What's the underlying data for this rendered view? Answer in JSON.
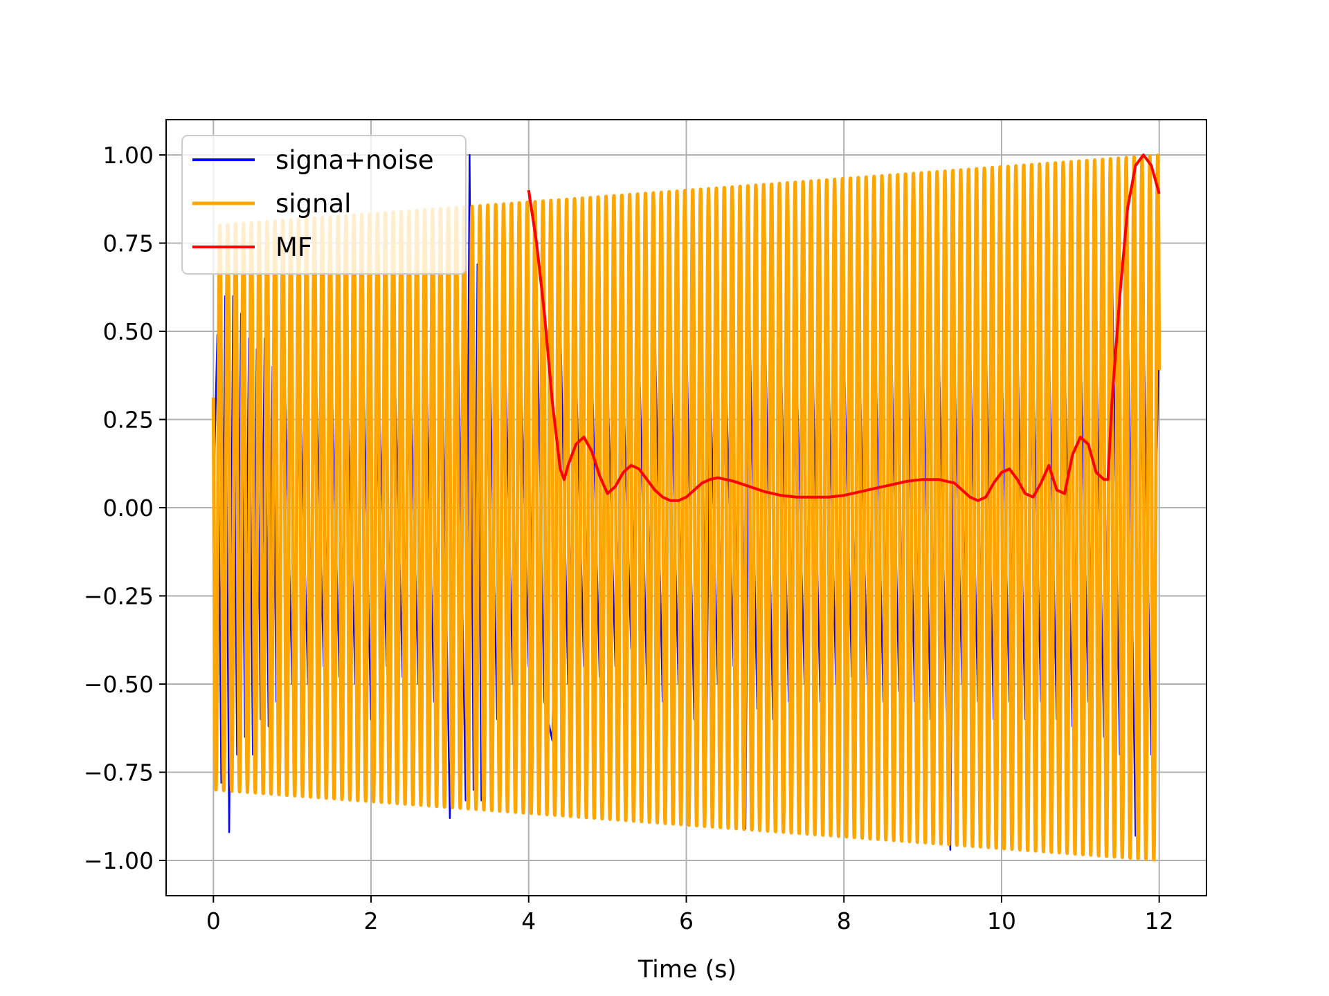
{
  "chart_data": {
    "type": "line",
    "title": "",
    "xlabel": "Time (s)",
    "ylabel": "",
    "xlim": [
      -0.6,
      12.6
    ],
    "ylim": [
      -1.1,
      1.1
    ],
    "grid": true,
    "legend_position": "top-left",
    "x_ticks": [
      0,
      2,
      4,
      6,
      8,
      10,
      12
    ],
    "x_tick_labels": [
      "0",
      "2",
      "4",
      "6",
      "8",
      "10",
      "12"
    ],
    "y_ticks": [
      1.0,
      0.75,
      0.5,
      0.25,
      0.0,
      -0.25,
      -0.5,
      -0.75,
      -1.0
    ],
    "y_tick_labels": [
      "1.00",
      "0.75",
      "0.50",
      "0.25",
      "0.00",
      "−0.25",
      "−0.50",
      "−0.75",
      "−1.00"
    ],
    "series": [
      {
        "name": "signa+noise",
        "color": "#0000ff",
        "x": [
          0.0,
          0.05,
          0.1,
          0.15,
          0.2,
          0.25,
          0.3,
          0.35,
          0.4,
          0.45,
          0.5,
          0.55,
          0.6,
          0.65,
          0.7,
          0.75,
          0.8,
          0.9,
          1.0,
          1.1,
          1.2,
          1.3,
          1.4,
          1.5,
          1.6,
          1.7,
          1.8,
          1.9,
          2.0,
          2.1,
          2.2,
          2.3,
          2.4,
          2.5,
          2.6,
          2.7,
          2.8,
          2.9,
          3.0,
          3.1,
          3.2,
          3.25,
          3.3,
          3.35,
          3.4,
          3.5,
          3.6,
          3.7,
          3.8,
          3.9,
          4.0,
          4.1,
          4.2,
          4.3,
          4.4,
          4.5,
          4.6,
          4.7,
          4.8,
          4.9,
          5.0,
          5.1,
          5.2,
          5.3,
          5.4,
          5.5,
          5.6,
          5.7,
          5.8,
          5.9,
          6.0,
          6.1,
          6.2,
          6.25,
          6.3,
          6.4,
          6.5,
          6.6,
          6.7,
          6.75,
          6.8,
          6.9,
          7.0,
          7.1,
          7.2,
          7.3,
          7.4,
          7.5,
          7.6,
          7.7,
          7.8,
          7.9,
          8.0,
          8.1,
          8.2,
          8.3,
          8.4,
          8.5,
          8.6,
          8.7,
          8.8,
          8.9,
          9.0,
          9.1,
          9.2,
          9.3,
          9.35,
          9.4,
          9.5,
          9.6,
          9.7,
          9.8,
          9.9,
          10.0,
          10.1,
          10.2,
          10.3,
          10.4,
          10.5,
          10.6,
          10.7,
          10.8,
          10.9,
          11.0,
          11.1,
          11.2,
          11.3,
          11.4,
          11.5,
          11.6,
          11.7,
          11.8,
          11.9,
          12.0
        ],
        "y": [
          0.02,
          0.49,
          -0.78,
          0.6,
          -0.92,
          0.6,
          -0.7,
          0.55,
          -0.65,
          0.48,
          -0.7,
          0.45,
          -0.6,
          0.48,
          -0.62,
          0.4,
          -0.55,
          0.42,
          -0.5,
          0.35,
          -0.5,
          0.4,
          -0.45,
          0.38,
          -0.48,
          0.35,
          -0.5,
          0.43,
          -0.6,
          0.35,
          -0.45,
          0.4,
          -0.48,
          0.38,
          -0.5,
          0.42,
          -0.55,
          0.46,
          -0.88,
          0.55,
          -0.83,
          1.0,
          -0.8,
          0.69,
          -0.83,
          0.5,
          -0.6,
          0.45,
          -0.5,
          0.4,
          -0.45,
          0.6,
          -0.55,
          -0.66,
          0.55,
          -0.5,
          0.4,
          -0.45,
          0.42,
          -0.48,
          0.38,
          -0.45,
          0.35,
          -0.4,
          0.45,
          -0.5,
          0.52,
          -0.55,
          0.45,
          -0.5,
          0.5,
          -0.6,
          0.46,
          -0.77,
          0.4,
          -0.5,
          0.4,
          -0.45,
          0.5,
          -0.91,
          0.55,
          -0.57,
          0.5,
          -0.6,
          0.45,
          -0.55,
          0.4,
          -0.5,
          0.45,
          -0.55,
          0.42,
          -0.5,
          0.45,
          -0.48,
          0.4,
          -0.5,
          0.45,
          -0.55,
          0.48,
          -0.52,
          0.5,
          -0.55,
          0.45,
          -0.6,
          0.5,
          -0.55,
          -0.97,
          0.45,
          -0.5,
          0.48,
          -0.55,
          0.5,
          -0.6,
          0.45,
          -0.55,
          0.5,
          -0.6,
          0.42,
          -0.55,
          0.48,
          -0.6,
          0.45,
          -0.62,
          0.5,
          -0.55,
          0.48,
          -0.65,
          0.72,
          -0.7,
          0.6,
          -0.93,
          0.55,
          -0.7,
          0.52
        ]
      },
      {
        "name": "signal",
        "color": "#ffa500",
        "frequency_hz": 10,
        "amplitude_start": 0.8,
        "amplitude_end": 1.0,
        "x_range": [
          0,
          12
        ],
        "envelope_x": [
          0,
          4,
          8,
          12
        ],
        "envelope_y": [
          0.8,
          0.855,
          0.92,
          1.0
        ]
      },
      {
        "name": "MF",
        "color": "#ff0000",
        "x": [
          4.0,
          4.1,
          4.2,
          4.3,
          4.4,
          4.45,
          4.5,
          4.6,
          4.7,
          4.8,
          4.9,
          5.0,
          5.1,
          5.2,
          5.3,
          5.4,
          5.5,
          5.6,
          5.7,
          5.8,
          5.9,
          6.0,
          6.1,
          6.2,
          6.3,
          6.4,
          6.5,
          6.6,
          6.8,
          7.0,
          7.2,
          7.4,
          7.6,
          7.8,
          8.0,
          8.2,
          8.4,
          8.6,
          8.8,
          9.0,
          9.2,
          9.4,
          9.6,
          9.7,
          9.8,
          9.9,
          10.0,
          10.1,
          10.2,
          10.3,
          10.4,
          10.5,
          10.6,
          10.7,
          10.8,
          10.9,
          11.0,
          11.1,
          11.2,
          11.3,
          11.35,
          11.4,
          11.5,
          11.6,
          11.7,
          11.8,
          11.9,
          12.0
        ],
        "y": [
          0.9,
          0.75,
          0.55,
          0.3,
          0.11,
          0.08,
          0.12,
          0.18,
          0.2,
          0.16,
          0.09,
          0.04,
          0.06,
          0.1,
          0.12,
          0.11,
          0.08,
          0.05,
          0.03,
          0.02,
          0.02,
          0.03,
          0.05,
          0.07,
          0.08,
          0.085,
          0.08,
          0.075,
          0.06,
          0.045,
          0.035,
          0.03,
          0.03,
          0.03,
          0.035,
          0.045,
          0.055,
          0.065,
          0.075,
          0.08,
          0.08,
          0.07,
          0.03,
          0.02,
          0.03,
          0.07,
          0.1,
          0.11,
          0.08,
          0.04,
          0.03,
          0.07,
          0.12,
          0.05,
          0.04,
          0.15,
          0.2,
          0.18,
          0.1,
          0.08,
          0.08,
          0.3,
          0.6,
          0.85,
          0.97,
          1.0,
          0.97,
          0.89
        ]
      }
    ]
  }
}
